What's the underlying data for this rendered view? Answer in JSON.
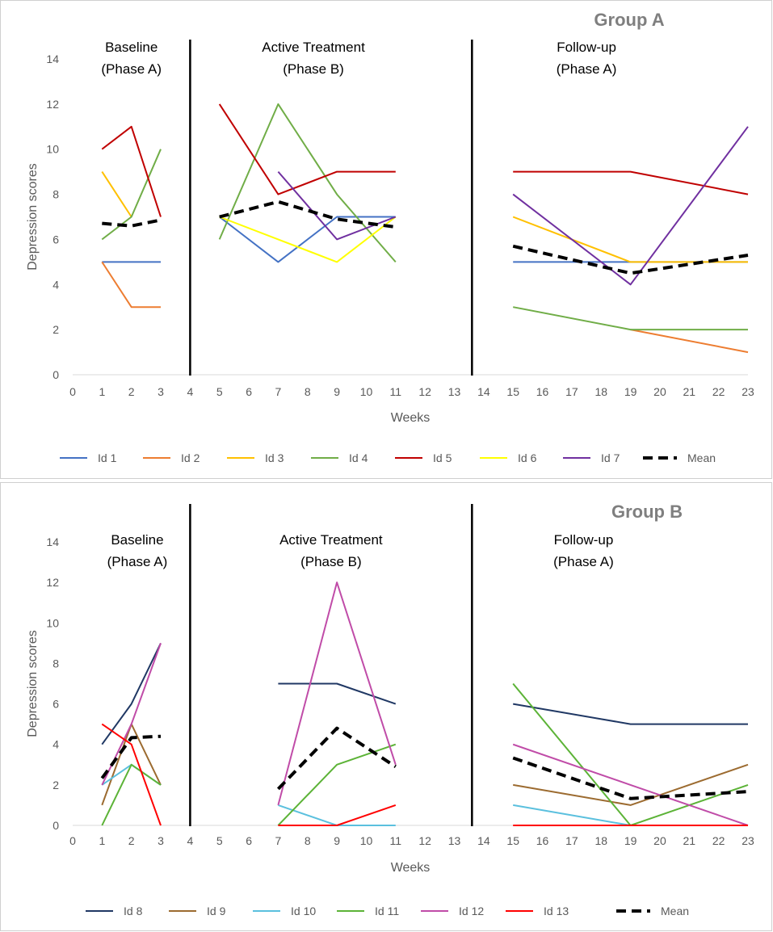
{
  "chart_data": [
    {
      "type": "line",
      "title": "Group A",
      "xlabel": "Weeks",
      "ylabel": "Depression scores",
      "xlim": [
        0,
        23
      ],
      "ylim": [
        0,
        14
      ],
      "xticks": [
        "0",
        "1",
        "2",
        "3",
        "4",
        "5",
        "6",
        "7",
        "8",
        "9",
        "10",
        "11",
        "12",
        "13",
        "14",
        "15",
        "16",
        "17",
        "18",
        "19",
        "20",
        "21",
        "22",
        "23"
      ],
      "yticks": [
        "0",
        "2",
        "4",
        "6",
        "8",
        "10",
        "12",
        "14"
      ],
      "phase_dividers": [
        4,
        13.6
      ],
      "phases": [
        {
          "line1": "Baseline",
          "line2": "(Phase A)",
          "x": 2
        },
        {
          "line1": "Active Treatment",
          "line2": "(Phase B)",
          "x": 8.2
        },
        {
          "line1": "Follow-up",
          "line2": "(Phase A)",
          "x": 17.5
        }
      ],
      "series": [
        {
          "name": "Id 1",
          "color": "#4472c4",
          "dashed": false,
          "segments": [
            [
              [
                1,
                5
              ],
              [
                2,
                5
              ],
              [
                3,
                5
              ]
            ],
            [
              [
                5,
                7
              ],
              [
                7,
                5
              ],
              [
                9,
                7
              ],
              [
                11,
                7
              ]
            ],
            [
              [
                15,
                5
              ],
              [
                19,
                5
              ],
              [
                23,
                5
              ]
            ]
          ]
        },
        {
          "name": "Id 2",
          "color": "#ed7d31",
          "dashed": false,
          "segments": [
            [
              [
                1,
                5
              ],
              [
                2,
                3
              ],
              [
                3,
                3
              ]
            ],
            [
              [
                19,
                2
              ],
              [
                23,
                1
              ]
            ]
          ]
        },
        {
          "name": "Id 3",
          "color": "#ffc000",
          "dashed": false,
          "segments": [
            [
              [
                1,
                9
              ],
              [
                2,
                7
              ]
            ],
            [
              [
                15,
                7
              ],
              [
                19,
                5
              ],
              [
                23,
                5
              ]
            ]
          ]
        },
        {
          "name": "Id 4",
          "color": "#70ad47",
          "dashed": false,
          "segments": [
            [
              [
                1,
                6
              ],
              [
                2,
                7
              ],
              [
                3,
                10
              ]
            ],
            [
              [
                5,
                6
              ],
              [
                7,
                12
              ],
              [
                9,
                8
              ],
              [
                11,
                5
              ]
            ],
            [
              [
                15,
                3
              ],
              [
                19,
                2
              ],
              [
                23,
                2
              ]
            ]
          ]
        },
        {
          "name": "Id 5",
          "color": "#c00000",
          "dashed": false,
          "segments": [
            [
              [
                1,
                10
              ],
              [
                2,
                11
              ],
              [
                3,
                7
              ]
            ],
            [
              [
                5,
                12
              ],
              [
                7,
                8
              ],
              [
                9,
                9
              ],
              [
                11,
                9
              ]
            ],
            [
              [
                15,
                9
              ],
              [
                19,
                9
              ],
              [
                23,
                8
              ]
            ]
          ]
        },
        {
          "name": "Id 6",
          "color": "#ffff00",
          "dashed": false,
          "segments": [
            [
              [
                5,
                7
              ],
              [
                7,
                6
              ],
              [
                9,
                5
              ],
              [
                11,
                7
              ]
            ]
          ]
        },
        {
          "name": "Id 7",
          "color": "#7030a0",
          "dashed": false,
          "segments": [
            [
              [
                7,
                9
              ],
              [
                9,
                6
              ],
              [
                11,
                7
              ]
            ],
            [
              [
                15,
                8
              ],
              [
                19,
                4
              ],
              [
                23,
                11
              ]
            ]
          ]
        },
        {
          "name": "Mean",
          "color": "#000000",
          "dashed": true,
          "segments": [
            [
              [
                1,
                6.71
              ],
              [
                2,
                6.6
              ],
              [
                3,
                6.86
              ]
            ],
            [
              [
                5,
                7
              ],
              [
                7,
                7.67
              ],
              [
                9,
                6.9
              ],
              [
                11,
                6.55
              ]
            ],
            [
              [
                15,
                5.7
              ],
              [
                19,
                4.5
              ],
              [
                23,
                5.3
              ]
            ]
          ]
        }
      ]
    },
    {
      "type": "line",
      "title": "Group B",
      "xlabel": "Weeks",
      "ylabel": "Depression scores",
      "xlim": [
        0,
        23
      ],
      "ylim": [
        0,
        14
      ],
      "xticks": [
        "0",
        "1",
        "2",
        "3",
        "4",
        "5",
        "6",
        "7",
        "8",
        "9",
        "10",
        "11",
        "12",
        "13",
        "14",
        "15",
        "16",
        "17",
        "18",
        "19",
        "20",
        "21",
        "22",
        "23"
      ],
      "yticks": [
        "0",
        "2",
        "4",
        "6",
        "8",
        "10",
        "12",
        "14"
      ],
      "phase_dividers": [
        4,
        13.6
      ],
      "phases": [
        {
          "line1": "Baseline",
          "line2": "(Phase A)",
          "x": 2.2
        },
        {
          "line1": "Active Treatment",
          "line2": "(Phase B)",
          "x": 8.8
        },
        {
          "line1": "Follow-up",
          "line2": "(Phase A)",
          "x": 17.4
        }
      ],
      "series": [
        {
          "name": "Id 8",
          "color": "#203864",
          "dashed": false,
          "segments": [
            [
              [
                1,
                4
              ],
              [
                2,
                6
              ],
              [
                3,
                9
              ]
            ],
            [
              [
                7,
                7
              ],
              [
                9,
                7
              ],
              [
                11,
                6
              ]
            ],
            [
              [
                15,
                6
              ],
              [
                19,
                5
              ],
              [
                23,
                5
              ]
            ]
          ]
        },
        {
          "name": "Id 9",
          "color": "#9c6b30",
          "dashed": false,
          "segments": [
            [
              [
                1,
                1
              ],
              [
                2,
                5
              ],
              [
                3,
                2
              ]
            ],
            [
              [
                15,
                2
              ],
              [
                19,
                1
              ],
              [
                23,
                3
              ]
            ]
          ]
        },
        {
          "name": "Id 10",
          "color": "#5bc0de",
          "dashed": false,
          "segments": [
            [
              [
                1,
                2
              ],
              [
                2,
                3
              ],
              [
                3,
                2
              ]
            ],
            [
              [
                7,
                1
              ],
              [
                9,
                0
              ],
              [
                11,
                0
              ]
            ],
            [
              [
                15,
                1
              ],
              [
                19,
                0
              ],
              [
                23,
                0
              ]
            ]
          ]
        },
        {
          "name": "Id 11",
          "color": "#5cb337",
          "dashed": false,
          "segments": [
            [
              [
                1,
                0
              ],
              [
                2,
                3
              ],
              [
                3,
                2
              ]
            ],
            [
              [
                7,
                0
              ],
              [
                9,
                3
              ],
              [
                11,
                4
              ]
            ],
            [
              [
                15,
                7
              ],
              [
                19,
                0
              ],
              [
                23,
                2
              ]
            ]
          ]
        },
        {
          "name": "Id 12",
          "color": "#c04ca8",
          "dashed": false,
          "segments": [
            [
              [
                1,
                2
              ],
              [
                2,
                5
              ],
              [
                3,
                9
              ]
            ],
            [
              [
                7,
                1
              ],
              [
                9,
                12
              ],
              [
                11,
                3
              ]
            ],
            [
              [
                15,
                4
              ],
              [
                19,
                2
              ],
              [
                23,
                0
              ]
            ]
          ]
        },
        {
          "name": "Id 13",
          "color": "#ff0000",
          "dashed": false,
          "segments": [
            [
              [
                1,
                5
              ],
              [
                2,
                4
              ],
              [
                3,
                0
              ]
            ],
            [
              [
                7,
                0
              ],
              [
                9,
                0
              ],
              [
                11,
                1
              ]
            ],
            [
              [
                15,
                0
              ],
              [
                19,
                0
              ],
              [
                23,
                0
              ]
            ]
          ]
        },
        {
          "name": "Mean",
          "color": "#000000",
          "dashed": true,
          "segments": [
            [
              [
                1,
                2.33
              ],
              [
                2,
                4.33
              ],
              [
                3,
                4.4
              ]
            ],
            [
              [
                7,
                1.8
              ],
              [
                9,
                4.8
              ],
              [
                11,
                2.9
              ]
            ],
            [
              [
                15,
                3.33
              ],
              [
                19,
                1.33
              ],
              [
                23,
                1.67
              ]
            ]
          ]
        }
      ]
    }
  ]
}
